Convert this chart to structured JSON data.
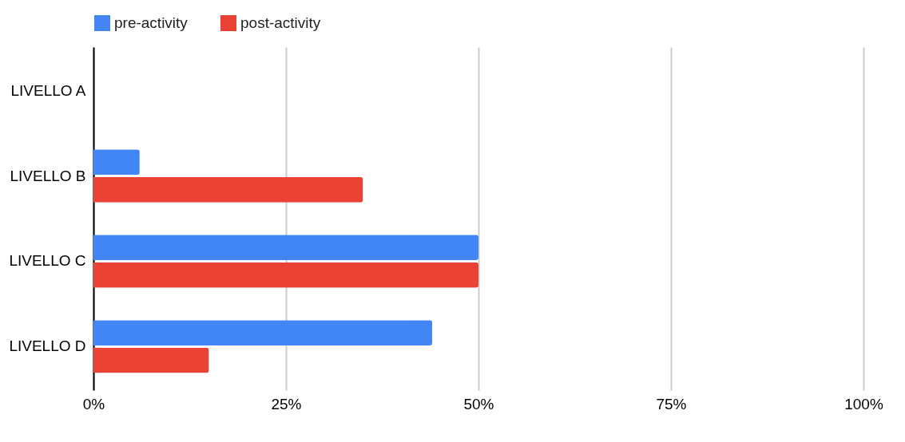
{
  "chart_data": {
    "type": "bar",
    "orientation": "horizontal",
    "categories": [
      "LIVELLO A",
      "LIVELLO B",
      "LIVELLO C",
      "LIVELLO D"
    ],
    "series": [
      {
        "name": "pre-activity",
        "color": "#4285f4",
        "values": [
          0,
          6,
          50,
          44
        ]
      },
      {
        "name": "post-activity",
        "color": "#ea4335",
        "values": [
          0,
          35,
          50,
          15
        ]
      }
    ],
    "xlim": [
      0,
      100
    ],
    "xticks": [
      {
        "value": 0,
        "label": "0%"
      },
      {
        "value": 25,
        "label": "25%"
      },
      {
        "value": 50,
        "label": "50%"
      },
      {
        "value": 75,
        "label": "75%"
      },
      {
        "value": 100,
        "label": "100%"
      }
    ],
    "grid": "x",
    "legend": "top"
  }
}
